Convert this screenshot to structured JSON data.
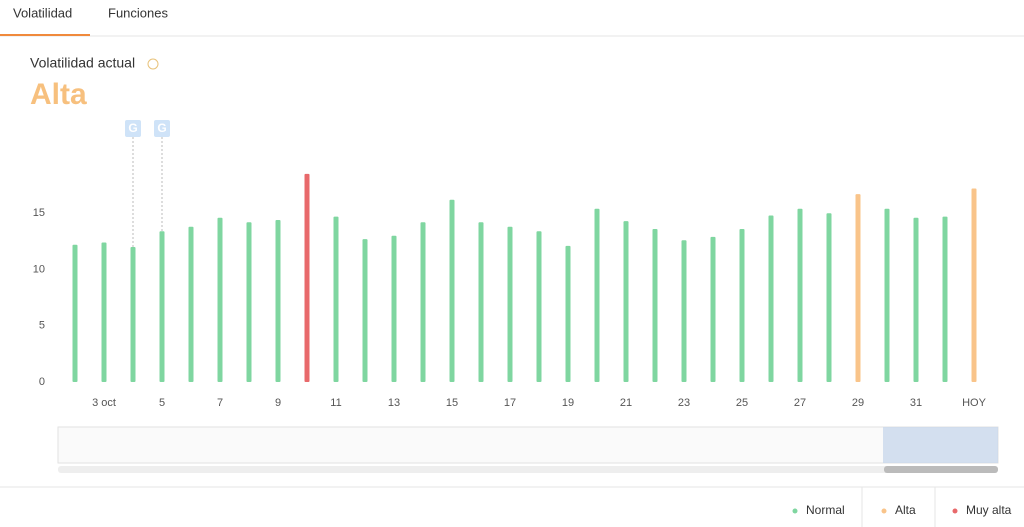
{
  "tabs": [
    "Volatilidad",
    "Funciones"
  ],
  "header": {
    "label": "Volatilidad actual",
    "value": "Alta"
  },
  "chart_data": {
    "type": "bar",
    "categories": [
      null,
      "3 oct",
      null,
      "5",
      null,
      "7",
      null,
      "9",
      null,
      "11",
      null,
      "13",
      null,
      "15",
      null,
      "17",
      null,
      "19",
      null,
      "21",
      null,
      "23",
      null,
      "25",
      null,
      "27",
      null,
      "29",
      null,
      "31",
      null,
      "HOY"
    ],
    "values": [
      12.2,
      12.4,
      12.0,
      13.4,
      13.8,
      14.6,
      14.2,
      14.4,
      18.5,
      14.7,
      12.7,
      13.0,
      14.2,
      16.2,
      14.2,
      13.8,
      13.4,
      12.1,
      15.4,
      14.3,
      13.6,
      12.6,
      12.9,
      13.6,
      14.8,
      15.4,
      15.0,
      16.7,
      15.4,
      14.6,
      14.7,
      17.2
    ],
    "colors": [
      "#7fd6a0",
      "#7fd6a0",
      "#7fd6a0",
      "#7fd6a0",
      "#7fd6a0",
      "#7fd6a0",
      "#7fd6a0",
      "#7fd6a0",
      "#e8696b",
      "#7fd6a0",
      "#7fd6a0",
      "#7fd6a0",
      "#7fd6a0",
      "#7fd6a0",
      "#7fd6a0",
      "#7fd6a0",
      "#7fd6a0",
      "#7fd6a0",
      "#7fd6a0",
      "#7fd6a0",
      "#7fd6a0",
      "#7fd6a0",
      "#7fd6a0",
      "#7fd6a0",
      "#7fd6a0",
      "#7fd6a0",
      "#7fd6a0",
      "#f9c48a",
      "#7fd6a0",
      "#7fd6a0",
      "#7fd6a0",
      "#f9c48a"
    ],
    "ylim": [
      0,
      20
    ],
    "yticks": [
      0,
      5,
      10,
      15
    ],
    "annotations": [
      {
        "text": "G",
        "category": 2
      },
      {
        "text": "G",
        "category": 3
      }
    ],
    "legend": [
      {
        "name": "Normal",
        "color": "#7fd6a0"
      },
      {
        "name": "Alta",
        "color": "#f9c48a"
      },
      {
        "name": "Muy alta",
        "color": "#e8696b"
      }
    ]
  }
}
